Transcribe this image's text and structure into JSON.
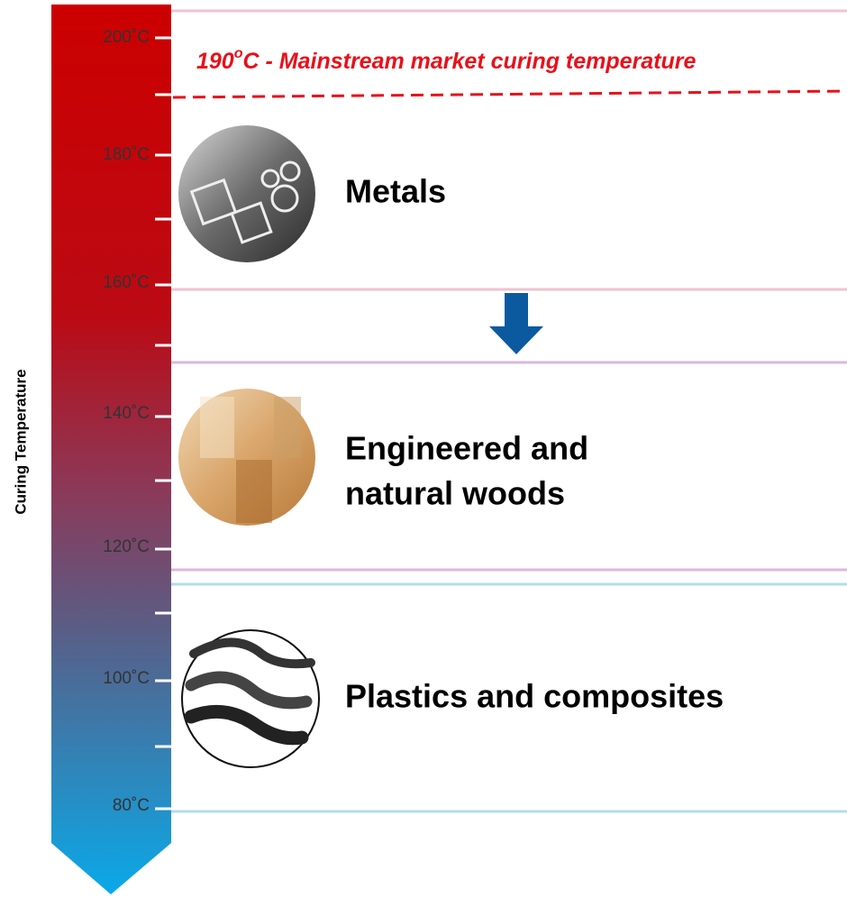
{
  "axis_label": "Curing Temperature",
  "scale_labels": [
    "200˚C",
    "180˚C",
    "160˚C",
    "140˚C",
    "120˚C",
    "100˚C",
    "80˚C"
  ],
  "annotation": {
    "number": "190",
    "degree": "o",
    "rest": "C - Mainstream market curing temperature"
  },
  "materials": [
    {
      "lines": [
        "Metals"
      ]
    },
    {
      "lines": [
        "Engineered and",
        "natural woods"
      ]
    },
    {
      "lines": [
        "Plastics and composites"
      ]
    }
  ]
}
